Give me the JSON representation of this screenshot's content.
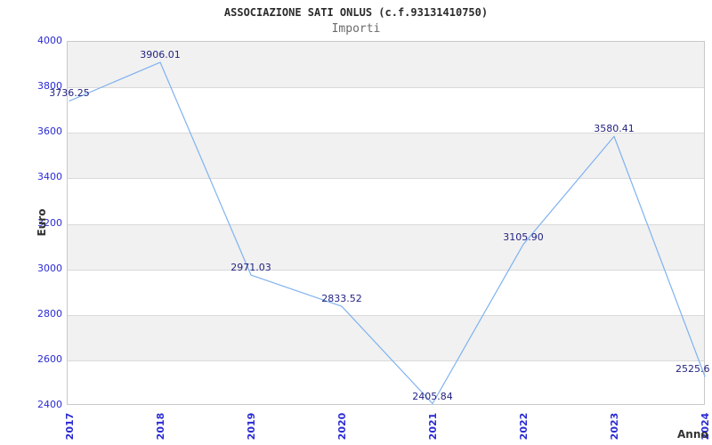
{
  "chart_data": {
    "type": "line",
    "title": "ASSOCIAZIONE SATI ONLUS (c.f.93131410750)",
    "subtitle": "Importi",
    "xlabel": "Anno",
    "ylabel": "Euro",
    "x": [
      2017,
      2018,
      2019,
      2020,
      2021,
      2022,
      2023,
      2024
    ],
    "values": [
      3736.25,
      3906.01,
      2971.03,
      2833.52,
      2405.84,
      3105.9,
      3580.41,
      2525.6
    ],
    "point_labels": [
      "3736.25",
      "3906.01",
      "2971.03",
      "2833.52",
      "2405.84",
      "3105.90",
      "3580.41",
      "2525.6"
    ],
    "ylim": [
      2400,
      4000
    ],
    "ytick_step": 200,
    "yticks": [
      4000,
      3800,
      3600,
      3400,
      3200,
      3000,
      2800,
      2600,
      2400
    ],
    "legend": "none",
    "grid": "horizontal-bands-alternating"
  },
  "colors": {
    "line": "#7fb2f0",
    "tick_label": "#2b2bd4",
    "data_label": "#232382",
    "band": "#f1f1f1",
    "gridline": "#dadada",
    "plot_border": "#c9c9c9",
    "title": "#2b2b2b",
    "subtitle": "#6b6b6b",
    "axis_title": "#333333"
  }
}
